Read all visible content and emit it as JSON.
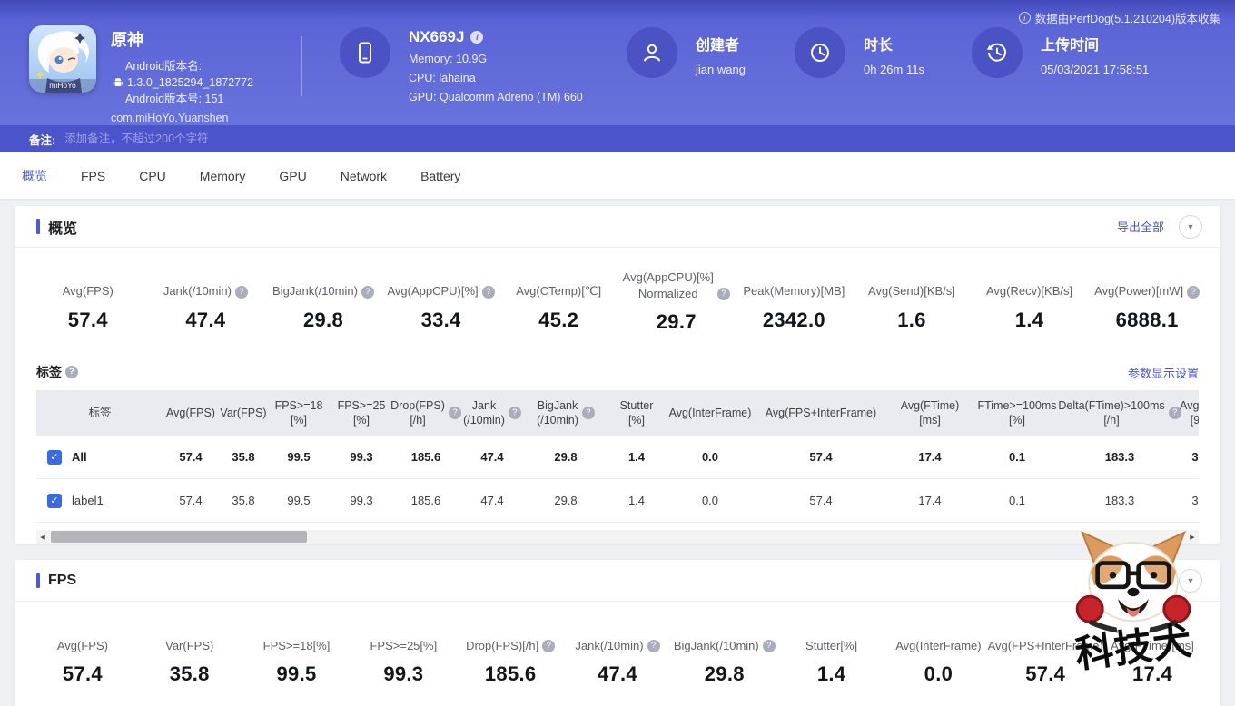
{
  "page": {
    "collected_by": "数据由PerfDog(5.1.210204)版本收集"
  },
  "icons": {
    "help": "?",
    "info": "i",
    "check": "✓",
    "caret_down": "▼",
    "arrow_left": "◀",
    "arrow_right": "▶"
  },
  "app": {
    "name": "原神",
    "icon_caption": "miHoYo",
    "android_version_name_label": "Android版本名:",
    "android_version_name": "1.3.0_1825294_1872772",
    "android_version_code": "Android版本号: 151",
    "package_name": "com.miHoYo.Yuanshen"
  },
  "device": {
    "model": "NX669J",
    "memory": "Memory: 10.9G",
    "cpu": "CPU: lahaina",
    "gpu": "GPU: Qualcomm Adreno (TM) 660"
  },
  "creator": {
    "label": "创建者",
    "value": "jian wang"
  },
  "duration": {
    "label": "时长",
    "value": "0h 26m 11s"
  },
  "upload_time": {
    "label": "上传时间",
    "value": "05/03/2021 17:58:51"
  },
  "remark": {
    "label": "备注:",
    "placeholder": "添加备注，不超过200个字符"
  },
  "tabs": [
    {
      "label": "概览",
      "active": true
    },
    {
      "label": "FPS",
      "active": false
    },
    {
      "label": "CPU",
      "active": false
    },
    {
      "label": "Memory",
      "active": false
    },
    {
      "label": "GPU",
      "active": false
    },
    {
      "label": "Network",
      "active": false
    },
    {
      "label": "Battery",
      "active": false
    }
  ],
  "overview": {
    "title": "概览",
    "export_all_label": "导出全部",
    "metrics": [
      {
        "label": "Avg(FPS)",
        "value": "57.4",
        "help": false
      },
      {
        "label": "Jank(/10min)",
        "value": "47.4",
        "help": true
      },
      {
        "label": "BigJank(/10min)",
        "value": "29.8",
        "help": true
      },
      {
        "label": "Avg(AppCPU)[%]",
        "value": "33.4",
        "help": true
      },
      {
        "label": "Avg(CTemp)[℃]",
        "value": "45.2",
        "help": false
      },
      {
        "label": "Avg(AppCPU)[%]\nNormalized",
        "value": "29.7",
        "help": true
      },
      {
        "label": "Peak(Memory)[MB]",
        "value": "2342.0",
        "help": false
      },
      {
        "label": "Avg(Send)[KB/s]",
        "value": "1.6",
        "help": false
      },
      {
        "label": "Avg(Recv)[KB/s]",
        "value": "1.4",
        "help": false
      },
      {
        "label": "Avg(Power)[mW]",
        "value": "6888.1",
        "help": true
      }
    ]
  },
  "labels_section": {
    "title": "标签",
    "settings_link": "参数显示设置",
    "table": {
      "label_col_header": "标签",
      "columns": [
        {
          "label": "Avg(FPS)",
          "help": false
        },
        {
          "label": "Var(FPS)",
          "help": false
        },
        {
          "label": "FPS>=18\n[%]",
          "help": false
        },
        {
          "label": "FPS>=25\n[%]",
          "help": false
        },
        {
          "label": "Drop(FPS)\n[/h]",
          "help": true
        },
        {
          "label": "Jank\n(/10min)",
          "help": true
        },
        {
          "label": "BigJank\n(/10min)",
          "help": true
        },
        {
          "label": "Stutter\n[%]",
          "help": false
        },
        {
          "label": "Avg(InterFrame)",
          "help": false
        },
        {
          "label": "Avg(FPS+InterFrame)",
          "help": false
        },
        {
          "label": "Avg(FTime)\n[ms]",
          "help": false
        },
        {
          "label": "FTime>=100ms\n[%]",
          "help": false
        },
        {
          "label": "Delta(FTime)>100ms\n[/h]",
          "help": true
        },
        {
          "label": "Avg(A\n[9",
          "help": false
        }
      ],
      "rows": [
        {
          "name": "All",
          "checked": true,
          "bold": true,
          "values": [
            "57.4",
            "35.8",
            "99.5",
            "99.3",
            "185.6",
            "47.4",
            "29.8",
            "1.4",
            "0.0",
            "57.4",
            "17.4",
            "0.1",
            "183.3",
            "3"
          ]
        },
        {
          "name": "label1",
          "checked": true,
          "bold": false,
          "values": [
            "57.4",
            "35.8",
            "99.5",
            "99.3",
            "185.6",
            "47.4",
            "29.8",
            "1.4",
            "0.0",
            "57.4",
            "17.4",
            "0.1",
            "183.3",
            "3"
          ]
        }
      ]
    }
  },
  "fps_section": {
    "title": "FPS",
    "metrics": [
      {
        "label": "Avg(FPS)",
        "value": "57.4",
        "help": false
      },
      {
        "label": "Var(FPS)",
        "value": "35.8",
        "help": false
      },
      {
        "label": "FPS>=18[%]",
        "value": "99.5",
        "help": false
      },
      {
        "label": "FPS>=25[%]",
        "value": "99.3",
        "help": false
      },
      {
        "label": "Drop(FPS)[/h]",
        "value": "185.6",
        "help": true
      },
      {
        "label": "Jank(/10min)",
        "value": "47.4",
        "help": true
      },
      {
        "label": "BigJank(/10min)",
        "value": "29.8",
        "help": true
      },
      {
        "label": "Stutter[%]",
        "value": "1.4",
        "help": false
      },
      {
        "label": "Avg(InterFrame)",
        "value": "0.0",
        "help": false
      },
      {
        "label": "Avg(FPS+InterFrame)",
        "value": "57.4",
        "help": false
      },
      {
        "label": "Avg(FTime)[ms]",
        "value": "17.4",
        "help": false
      }
    ]
  },
  "watermark": {
    "text": "科技犬"
  }
}
